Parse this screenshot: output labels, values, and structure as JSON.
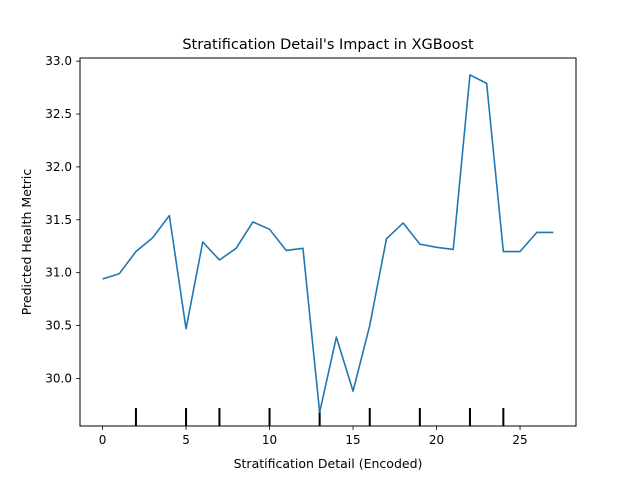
{
  "chart_data": {
    "type": "line",
    "title": "Stratification Detail's Impact in XGBoost",
    "xlabel": "Stratification Detail (Encoded)",
    "ylabel": "Predicted Health Metric",
    "xlim": [
      -1.35,
      28.35
    ],
    "ylim": [
      29.55,
      33.03
    ],
    "xticks": [
      0,
      5,
      10,
      15,
      20,
      25
    ],
    "yticks": [
      30.0,
      30.5,
      31.0,
      31.5,
      32.0,
      32.5,
      33.0
    ],
    "ytick_labels": [
      "30.0",
      "30.5",
      "31.0",
      "31.5",
      "32.0",
      "32.5",
      "33.0"
    ],
    "grid": false,
    "line_color": "#1f77b4",
    "x": [
      0,
      1,
      2,
      3,
      4,
      5,
      6,
      7,
      8,
      9,
      10,
      11,
      12,
      13,
      14,
      15,
      16,
      17,
      18,
      19,
      20,
      21,
      22,
      23,
      24,
      25,
      26,
      27
    ],
    "y": [
      30.94,
      30.99,
      31.2,
      31.33,
      31.54,
      30.47,
      31.29,
      31.12,
      31.23,
      31.48,
      31.41,
      31.21,
      31.23,
      29.68,
      30.39,
      29.88,
      30.5,
      31.32,
      31.47,
      31.27,
      31.24,
      31.22,
      32.87,
      32.79,
      31.2,
      31.2,
      31.38,
      31.38
    ],
    "rug": [
      2,
      5,
      7,
      10,
      13,
      16,
      19,
      22,
      24
    ]
  }
}
